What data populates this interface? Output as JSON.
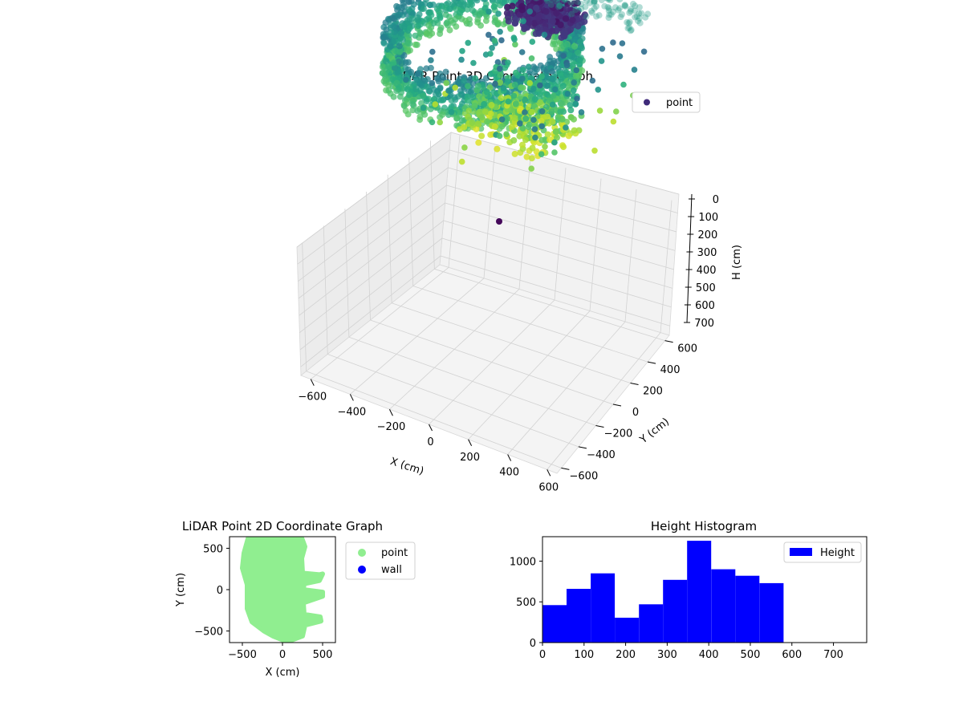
{
  "chart_data": [
    {
      "type": "scatter",
      "projection": "3d",
      "title": "LiDAR Point 3D Coordinate Graph",
      "xlabel": "X (cm)",
      "ylabel": "Y (cm)",
      "zlabel": "H (cm)",
      "xticks": [
        "−600",
        "−400",
        "−200",
        "0",
        "200",
        "400",
        "600"
      ],
      "yticks": [
        "−600",
        "−400",
        "−200",
        "0",
        "200",
        "400",
        "600"
      ],
      "zticks": [
        "0",
        "100",
        "200",
        "300",
        "400",
        "500",
        "600",
        "700"
      ],
      "xlim": [
        -650,
        650
      ],
      "ylim": [
        -650,
        650
      ],
      "zlim": [
        750,
        0
      ],
      "z_axis_inverted": true,
      "grid": true,
      "colormap": "viridis",
      "legend": {
        "position": "top-right",
        "entries": [
          {
            "label": "point",
            "color": "#3f2a7a"
          }
        ]
      },
      "series": [
        {
          "name": "point",
          "approximate_extent": {
            "x": [
              -500,
              480
            ],
            "y": [
              -600,
              600
            ],
            "h": [
              0,
              700
            ]
          }
        }
      ]
    },
    {
      "type": "scatter",
      "title": "LiDAR Point 2D Coordinate Graph",
      "xlabel": "X (cm)",
      "ylabel": "Y (cm)",
      "xticks": [
        "−500",
        "0",
        "500"
      ],
      "yticks": [
        "−500",
        "0",
        "500"
      ],
      "xlim": [
        -660,
        660
      ],
      "ylim": [
        -640,
        640
      ],
      "legend": {
        "position": "outside-right",
        "entries": [
          {
            "label": "point",
            "color": "#90ee90"
          },
          {
            "label": "wall",
            "color": "#0000ff"
          }
        ]
      },
      "series": [
        {
          "name": "point",
          "color": "#90ee90",
          "outline": [
            [
              -420,
              650
            ],
            [
              -240,
              700
            ],
            [
              -40,
              700
            ],
            [
              230,
              650
            ],
            [
              280,
              520
            ],
            [
              240,
              380
            ],
            [
              250,
              200
            ],
            [
              460,
              180
            ],
            [
              500,
              190
            ],
            [
              460,
              110
            ],
            [
              270,
              70
            ],
            [
              260,
              0
            ],
            [
              500,
              -30
            ],
            [
              500,
              -80
            ],
            [
              260,
              -160
            ],
            [
              270,
              -300
            ],
            [
              470,
              -330
            ],
            [
              480,
              -380
            ],
            [
              280,
              -430
            ],
            [
              250,
              -560
            ],
            [
              60,
              -630
            ],
            [
              -120,
              -560
            ],
            [
              -230,
              -500
            ],
            [
              -380,
              -390
            ],
            [
              -440,
              -230
            ],
            [
              -440,
              60
            ],
            [
              -500,
              260
            ],
            [
              -480,
              440
            ]
          ]
        },
        {
          "name": "wall",
          "color": "#0000ff",
          "values": []
        }
      ]
    },
    {
      "type": "bar",
      "title": "Height Histogram",
      "xticks": [
        "0",
        "100",
        "200",
        "300",
        "400",
        "500",
        "600",
        "700"
      ],
      "yticks": [
        "0",
        "500",
        "1000"
      ],
      "xlim": [
        0,
        780
      ],
      "ylim": [
        0,
        1300
      ],
      "legend": {
        "position": "top-right",
        "entries": [
          {
            "label": "Height",
            "color": "#0000ff"
          }
        ]
      },
      "bin_width": 58,
      "bins": [
        0,
        58,
        116,
        174,
        232,
        290,
        348,
        406,
        464,
        522
      ],
      "values": [
        460,
        660,
        850,
        305,
        470,
        770,
        1250,
        900,
        820,
        730
      ],
      "color": "#0000ff"
    }
  ]
}
